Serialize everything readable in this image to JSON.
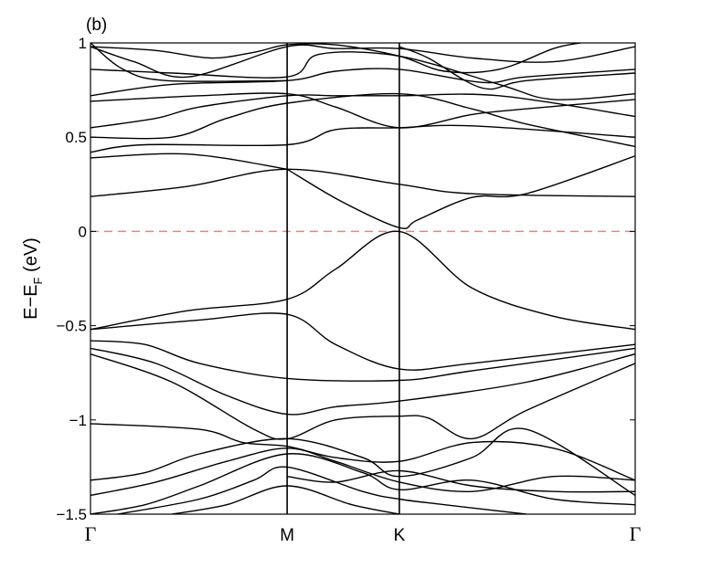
{
  "panel_label": "(b)",
  "chart_data": {
    "type": "line",
    "ylabel": {
      "main": "E−E",
      "sub": "F",
      "unit": " (eV)"
    },
    "ylim": [
      -1.5,
      1
    ],
    "yticks": [
      {
        "value": 1,
        "label": "1"
      },
      {
        "value": 0.5,
        "label": "0.5"
      },
      {
        "value": 0,
        "label": "0"
      },
      {
        "value": -0.5,
        "label": "−0.5"
      },
      {
        "value": -1,
        "label": "−1"
      },
      {
        "value": -1.5,
        "label": "−1.5"
      }
    ],
    "xlim": [
      0,
      1
    ],
    "kpoints": [
      {
        "label": "Γ",
        "x": 0,
        "serif": true
      },
      {
        "label": "M",
        "x": 0.361,
        "serif": false
      },
      {
        "label": "K",
        "x": 0.567,
        "serif": false
      },
      {
        "label": "Γ",
        "x": 1,
        "serif": true
      }
    ],
    "fermi_level": {
      "value": 0,
      "color": "#f08080",
      "style": "dashed"
    },
    "series": [
      {
        "values": [
          [
            0,
            0.185
          ],
          [
            0.18,
            0.24
          ],
          [
            0.361,
            0.33
          ],
          [
            0.567,
            0.25
          ],
          [
            0.7,
            0.2
          ],
          [
            1,
            0.185
          ]
        ]
      },
      {
        "values": [
          [
            0,
            0.39
          ],
          [
            0.18,
            0.41
          ],
          [
            0.361,
            0.33
          ]
        ]
      },
      {
        "values": [
          [
            0.361,
            0.33
          ],
          [
            0.46,
            0.16
          ],
          [
            0.567,
            0.02
          ],
          [
            0.6,
            0.06
          ],
          [
            0.7,
            0.18
          ],
          [
            0.8,
            0.2
          ],
          [
            1,
            0.4
          ]
        ]
      },
      {
        "values": [
          [
            0,
            0.42
          ],
          [
            0.1,
            0.46
          ],
          [
            0.361,
            0.46
          ],
          [
            0.45,
            0.54
          ],
          [
            0.567,
            0.55
          ],
          [
            0.7,
            0.56
          ],
          [
            1,
            0.5
          ]
        ]
      },
      {
        "values": [
          [
            0,
            0.5
          ],
          [
            0.15,
            0.5
          ],
          [
            0.25,
            0.6
          ],
          [
            0.361,
            0.68
          ],
          [
            0.567,
            0.73
          ],
          [
            0.7,
            0.65
          ],
          [
            0.8,
            0.57
          ],
          [
            1,
            0.45
          ]
        ]
      },
      {
        "values": [
          [
            0,
            0.55
          ],
          [
            0.12,
            0.6
          ],
          [
            0.2,
            0.66
          ],
          [
            0.361,
            0.72
          ],
          [
            0.45,
            0.72
          ],
          [
            0.567,
            0.72
          ],
          [
            0.75,
            0.72
          ],
          [
            1,
            0.61
          ]
        ]
      },
      {
        "values": [
          [
            0,
            0.69
          ],
          [
            0.2,
            0.72
          ],
          [
            0.361,
            0.73
          ],
          [
            0.45,
            0.66
          ],
          [
            0.567,
            0.55
          ],
          [
            0.7,
            0.62
          ],
          [
            0.8,
            0.65
          ],
          [
            1,
            0.7
          ]
        ]
      },
      {
        "values": [
          [
            0,
            0.72
          ],
          [
            0.15,
            0.78
          ],
          [
            0.361,
            0.8
          ],
          [
            0.45,
            0.85
          ],
          [
            0.567,
            0.86
          ],
          [
            0.72,
            0.79
          ],
          [
            0.8,
            0.82
          ],
          [
            1,
            0.86
          ]
        ]
      },
      {
        "values": [
          [
            0,
            0.86
          ],
          [
            0.15,
            0.84
          ],
          [
            0.361,
            0.82
          ],
          [
            0.42,
            0.94
          ],
          [
            0.567,
            0.93
          ],
          [
            0.75,
            0.78
          ],
          [
            0.85,
            0.7
          ],
          [
            1,
            0.73
          ]
        ]
      },
      {
        "values": [
          [
            0,
            0.98
          ],
          [
            0.08,
            0.9
          ],
          [
            0.18,
            0.82
          ],
          [
            0.361,
            0.98
          ],
          [
            0.45,
            0.97
          ],
          [
            0.567,
            0.97
          ],
          [
            0.7,
            0.92
          ],
          [
            0.85,
            0.9
          ],
          [
            1,
            0.98
          ]
        ]
      },
      {
        "values": [
          [
            0,
            0.98
          ],
          [
            0.12,
            0.96
          ],
          [
            0.22,
            0.92
          ],
          [
            0.3,
            0.95
          ],
          [
            0.361,
            0.99
          ],
          [
            0.45,
            0.99
          ],
          [
            0.567,
            0.93
          ],
          [
            0.65,
            0.85
          ],
          [
            0.75,
            0.86
          ],
          [
            0.85,
            0.97
          ],
          [
            0.9,
            1.0
          ]
        ]
      },
      {
        "values": [
          [
            0,
            1.0
          ],
          [
            0.06,
            0.86
          ],
          [
            0.14,
            0.8
          ],
          [
            0.361,
            0.8
          ]
        ]
      },
      {
        "values": [
          [
            0.567,
            0.98
          ],
          [
            0.62,
            0.92
          ],
          [
            0.72,
            0.76
          ],
          [
            0.8,
            0.8
          ],
          [
            1,
            0.84
          ]
        ]
      },
      {
        "values": [
          [
            0,
            -0.52
          ],
          [
            0.18,
            -0.42
          ],
          [
            0.361,
            -0.36
          ],
          [
            0.45,
            -0.2
          ],
          [
            0.567,
            0.0
          ],
          [
            0.7,
            -0.3
          ],
          [
            0.85,
            -0.45
          ],
          [
            1,
            -0.52
          ]
        ]
      },
      {
        "values": [
          [
            0,
            -0.52
          ],
          [
            0.2,
            -0.47
          ],
          [
            0.361,
            -0.44
          ],
          [
            0.45,
            -0.6
          ],
          [
            0.567,
            -0.73
          ],
          [
            0.7,
            -0.7
          ],
          [
            1,
            -0.6
          ]
        ]
      },
      {
        "values": [
          [
            0,
            -0.58
          ],
          [
            0.1,
            -0.6
          ],
          [
            0.2,
            -0.7
          ],
          [
            0.361,
            -0.78
          ],
          [
            0.567,
            -0.79
          ],
          [
            0.7,
            -0.74
          ],
          [
            1,
            -0.62
          ]
        ]
      },
      {
        "values": [
          [
            0,
            -0.62
          ],
          [
            0.12,
            -0.7
          ],
          [
            0.25,
            -0.87
          ],
          [
            0.361,
            -0.97
          ],
          [
            0.45,
            -0.93
          ],
          [
            0.567,
            -0.9
          ],
          [
            0.8,
            -0.8
          ],
          [
            1,
            -0.65
          ]
        ]
      },
      {
        "values": [
          [
            0,
            -0.65
          ],
          [
            0.15,
            -0.8
          ],
          [
            0.3,
            -1.05
          ],
          [
            0.361,
            -1.1
          ],
          [
            0.45,
            -1.0
          ],
          [
            0.567,
            -0.98
          ],
          [
            0.62,
            -0.99
          ],
          [
            0.7,
            -1.1
          ],
          [
            0.8,
            -0.95
          ],
          [
            1,
            -0.7
          ]
        ]
      },
      {
        "values": [
          [
            0,
            -1.02
          ],
          [
            0.2,
            -1.05
          ],
          [
            0.28,
            -1.12
          ],
          [
            0.361,
            -1.14
          ],
          [
            0.45,
            -1.2
          ],
          [
            0.567,
            -1.22
          ],
          [
            0.7,
            -1.12
          ],
          [
            0.85,
            -1.15
          ],
          [
            1,
            -1.32
          ]
        ]
      },
      {
        "values": [
          [
            0,
            -1.32
          ],
          [
            0.1,
            -1.28
          ],
          [
            0.2,
            -1.18
          ],
          [
            0.361,
            -1.1
          ],
          [
            0.5,
            -1.2
          ],
          [
            0.567,
            -1.3
          ],
          [
            0.7,
            -1.2
          ],
          [
            0.8,
            -1.05
          ],
          [
            1,
            -1.4
          ]
        ]
      },
      {
        "values": [
          [
            0,
            -1.4
          ],
          [
            0.12,
            -1.33
          ],
          [
            0.25,
            -1.22
          ],
          [
            0.361,
            -1.15
          ],
          [
            0.45,
            -1.22
          ],
          [
            0.567,
            -1.33
          ],
          [
            0.7,
            -1.38
          ],
          [
            0.85,
            -1.3
          ],
          [
            1,
            -1.32
          ]
        ]
      },
      {
        "values": [
          [
            0,
            -1.5
          ],
          [
            0.1,
            -1.45
          ],
          [
            0.2,
            -1.35
          ],
          [
            0.361,
            -1.18
          ],
          [
            0.5,
            -1.28
          ],
          [
            0.567,
            -1.37
          ],
          [
            0.7,
            -1.32
          ],
          [
            0.85,
            -1.42
          ],
          [
            1,
            -1.45
          ]
        ]
      },
      {
        "values": [
          [
            0.05,
            -1.5
          ],
          [
            0.2,
            -1.42
          ],
          [
            0.3,
            -1.32
          ],
          [
            0.361,
            -1.25
          ],
          [
            0.5,
            -1.38
          ],
          [
            0.567,
            -1.42
          ],
          [
            0.65,
            -1.45
          ],
          [
            0.8,
            -1.5
          ]
        ]
      },
      {
        "values": [
          [
            0.15,
            -1.5
          ],
          [
            0.25,
            -1.45
          ],
          [
            0.361,
            -1.35
          ],
          [
            0.48,
            -1.45
          ],
          [
            0.567,
            -1.5
          ]
        ]
      },
      {
        "values": [
          [
            0.361,
            -1.3
          ],
          [
            0.45,
            -1.33
          ],
          [
            0.567,
            -1.27
          ],
          [
            0.7,
            -1.35
          ],
          [
            0.85,
            -1.38
          ],
          [
            1,
            -1.38
          ]
        ]
      }
    ]
  }
}
